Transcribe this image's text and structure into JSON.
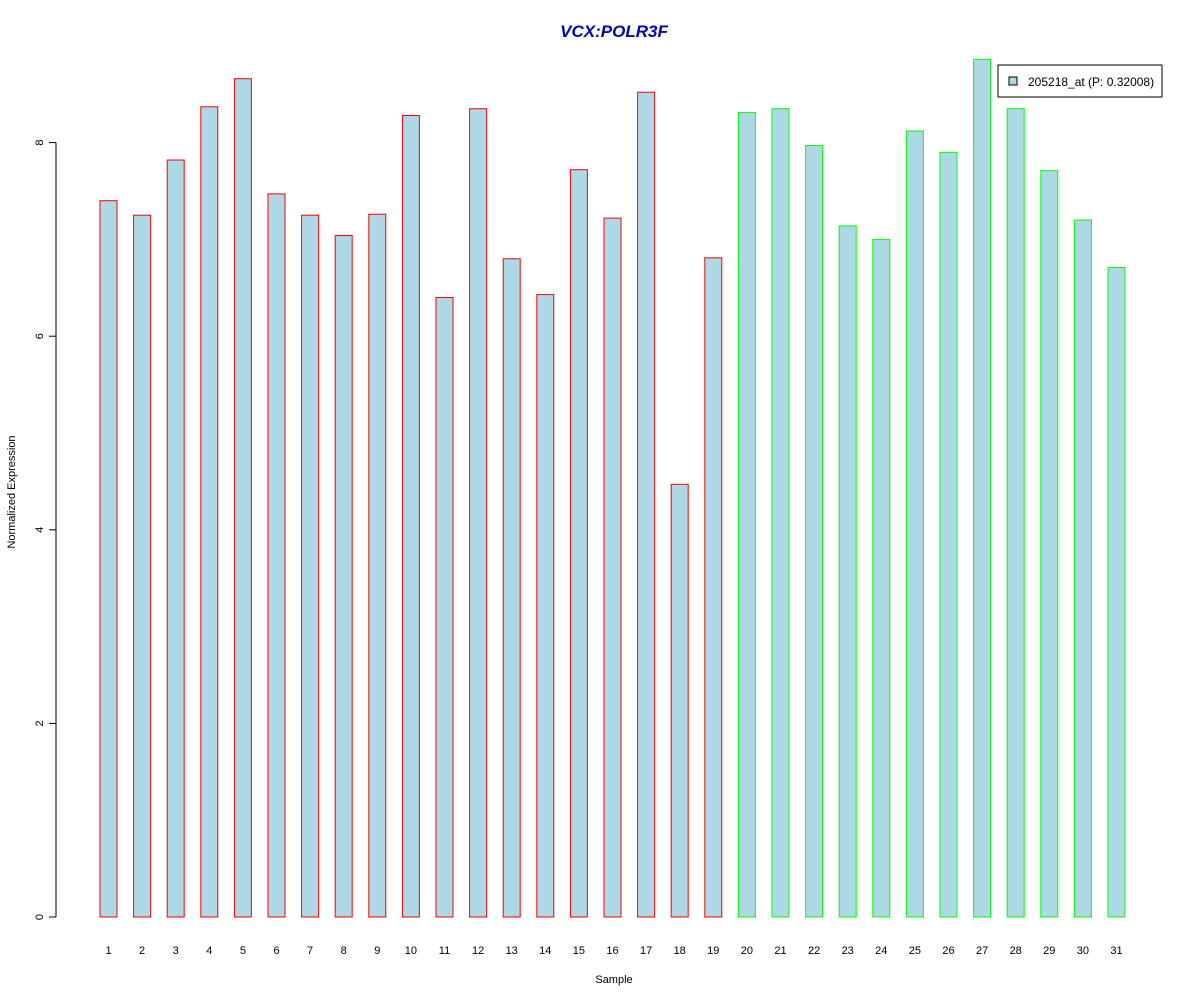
{
  "chart_data": {
    "type": "bar",
    "title": "VCX:POLR3F",
    "xlabel": "Sample",
    "ylabel": "Normalized Expression",
    "ylim": [
      0,
      8.9
    ],
    "yticks": [
      "0",
      "2",
      "4",
      "6",
      "8"
    ],
    "grid": false,
    "legend_position": "top-right",
    "legend": {
      "label": "205218_at (P: 0.32008)",
      "swatch_color": "#add8e6"
    },
    "colors": {
      "title": "#0000cc",
      "fill": "#add8e6",
      "group1_border": "#ff0000",
      "group2_border": "#00ff00"
    },
    "categories": [
      "1",
      "2",
      "3",
      "4",
      "5",
      "6",
      "7",
      "8",
      "9",
      "10",
      "11",
      "12",
      "13",
      "14",
      "15",
      "16",
      "17",
      "18",
      "19",
      "20",
      "21",
      "22",
      "23",
      "24",
      "25",
      "26",
      "27",
      "28",
      "29",
      "30",
      "31"
    ],
    "values": [
      7.4,
      7.25,
      7.82,
      8.37,
      8.66,
      7.47,
      7.25,
      7.04,
      7.26,
      8.28,
      6.4,
      8.35,
      6.8,
      6.43,
      7.72,
      7.22,
      8.52,
      4.47,
      6.81,
      8.31,
      8.35,
      7.97,
      7.14,
      7.0,
      8.12,
      7.9,
      8.86,
      8.35,
      7.71,
      7.2,
      6.71
    ],
    "groups": [
      1,
      1,
      1,
      1,
      1,
      1,
      1,
      1,
      1,
      1,
      1,
      1,
      1,
      1,
      1,
      1,
      1,
      1,
      1,
      2,
      2,
      2,
      2,
      2,
      2,
      2,
      2,
      2,
      2,
      2,
      2
    ]
  }
}
